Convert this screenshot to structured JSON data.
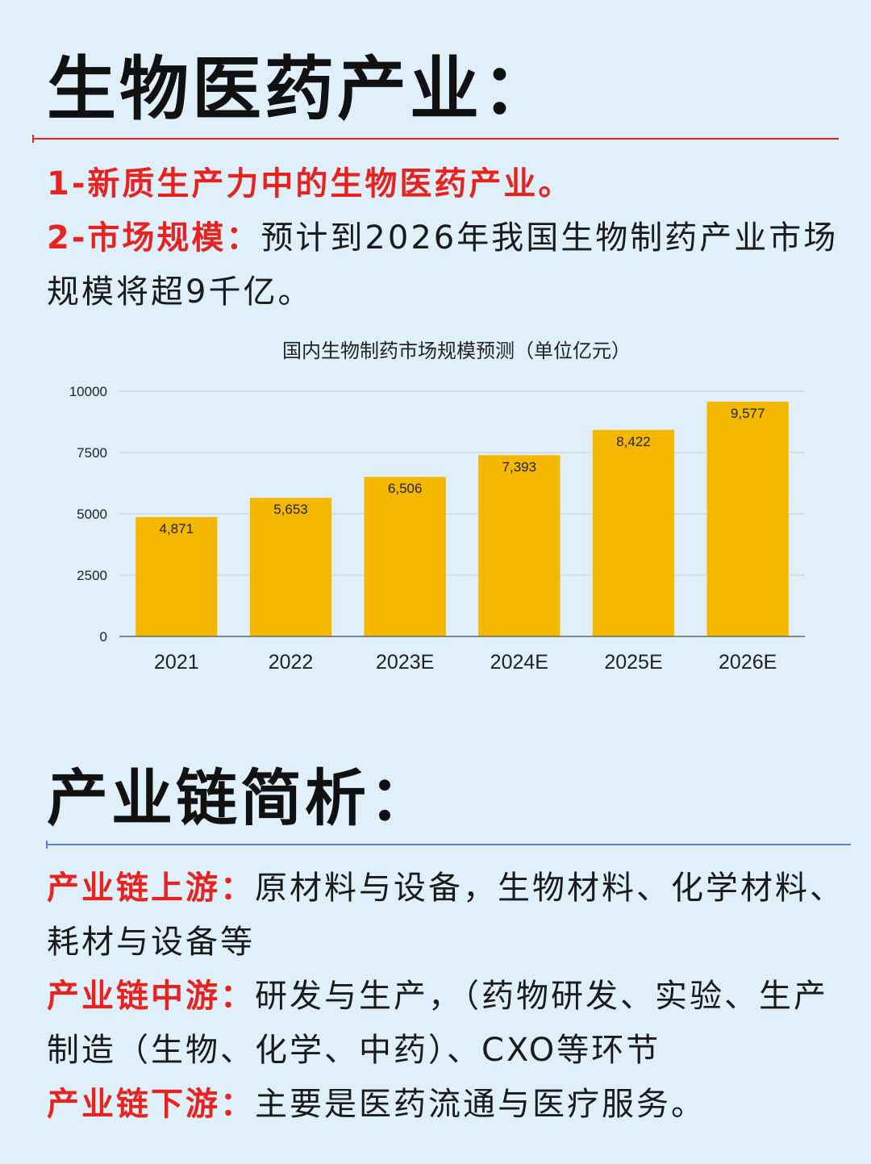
{
  "page": {
    "title": "生物医药产业：",
    "intro": [
      {
        "label": "1-新质生产力中的生物医药产业。",
        "text": ""
      },
      {
        "label": "2-市场规模：",
        "text": "预计到2026年我国生物制药产业市场规模将超9千亿。"
      }
    ],
    "chain_title": "产业链简析：",
    "chain": [
      {
        "label": "产业链上游：",
        "text": "原材料与设备，生物材料、化学材料、耗材与设备等"
      },
      {
        "label": "产业链中游：",
        "text": "研发与生产，（药物研发、实验、生产制造（生物、化学、中药）、CXO等环节"
      },
      {
        "label": "产业链下游：",
        "text": "主要是医药流通与医疗服务。"
      }
    ]
  },
  "colors": {
    "background": "#dff0fb",
    "highlight": "#e8221f",
    "rule_top": "#e8221f",
    "rule_bottom": "#5b7fe0",
    "bar": "#f5b800"
  },
  "chart_data": {
    "type": "bar",
    "title": "国内生物制药市场规模预测（单位亿元）",
    "categories": [
      "2021",
      "2022",
      "2023E",
      "2024E",
      "2025E",
      "2026E"
    ],
    "values": [
      4871,
      5653,
      6506,
      7393,
      8422,
      9577
    ],
    "data_labels": [
      "4,871",
      "5,653",
      "6,506",
      "7,393",
      "8,422",
      "9,577"
    ],
    "yticks": [
      "0",
      "2500",
      "5000",
      "7500",
      "10000"
    ],
    "ylim": [
      0,
      10000
    ],
    "grid": true,
    "legend": "none"
  }
}
